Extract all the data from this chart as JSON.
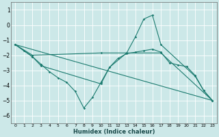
{
  "xlabel": "Humidex (Indice chaleur)",
  "ylabel": "",
  "xlim": [
    -0.5,
    23.5
  ],
  "ylim": [
    -6.5,
    1.5
  ],
  "yticks": [
    1,
    0,
    -1,
    -2,
    -3,
    -4,
    -5,
    -6
  ],
  "xticks": [
    0,
    1,
    2,
    3,
    4,
    5,
    6,
    7,
    8,
    9,
    10,
    11,
    12,
    13,
    14,
    15,
    16,
    17,
    18,
    19,
    20,
    21,
    22,
    23
  ],
  "bg_color": "#cce8e8",
  "grid_color": "#ffffff",
  "line_color": "#1a7a6e",
  "lines": [
    {
      "x": [
        0,
        1,
        2,
        3,
        4,
        5,
        6,
        7,
        8,
        9,
        10,
        11,
        12,
        13,
        14,
        15,
        16,
        17,
        18,
        19,
        20,
        21,
        22,
        23
      ],
      "y": [
        -1.3,
        -1.7,
        -2.1,
        -2.6,
        -3.1,
        -3.5,
        -3.8,
        -4.4,
        -5.5,
        -4.8,
        -3.8,
        -2.8,
        -2.2,
        -1.9,
        -1.8,
        -1.7,
        -1.6,
        -1.8,
        -2.5,
        -2.65,
        -2.75,
        -3.35,
        -4.35,
        -5.0
      ]
    },
    {
      "x": [
        0,
        2,
        3,
        10,
        11,
        13,
        14,
        15,
        16,
        17,
        21,
        22,
        23
      ],
      "y": [
        -1.3,
        -2.1,
        -2.7,
        -3.9,
        -2.8,
        -1.85,
        -0.8,
        0.4,
        0.65,
        -1.3,
        -3.4,
        -4.35,
        -5.0
      ]
    },
    {
      "x": [
        0,
        2,
        10,
        17,
        23
      ],
      "y": [
        -1.3,
        -2.0,
        -1.85,
        -1.85,
        -5.0
      ]
    },
    {
      "x": [
        0,
        23
      ],
      "y": [
        -1.3,
        -5.0
      ]
    }
  ]
}
